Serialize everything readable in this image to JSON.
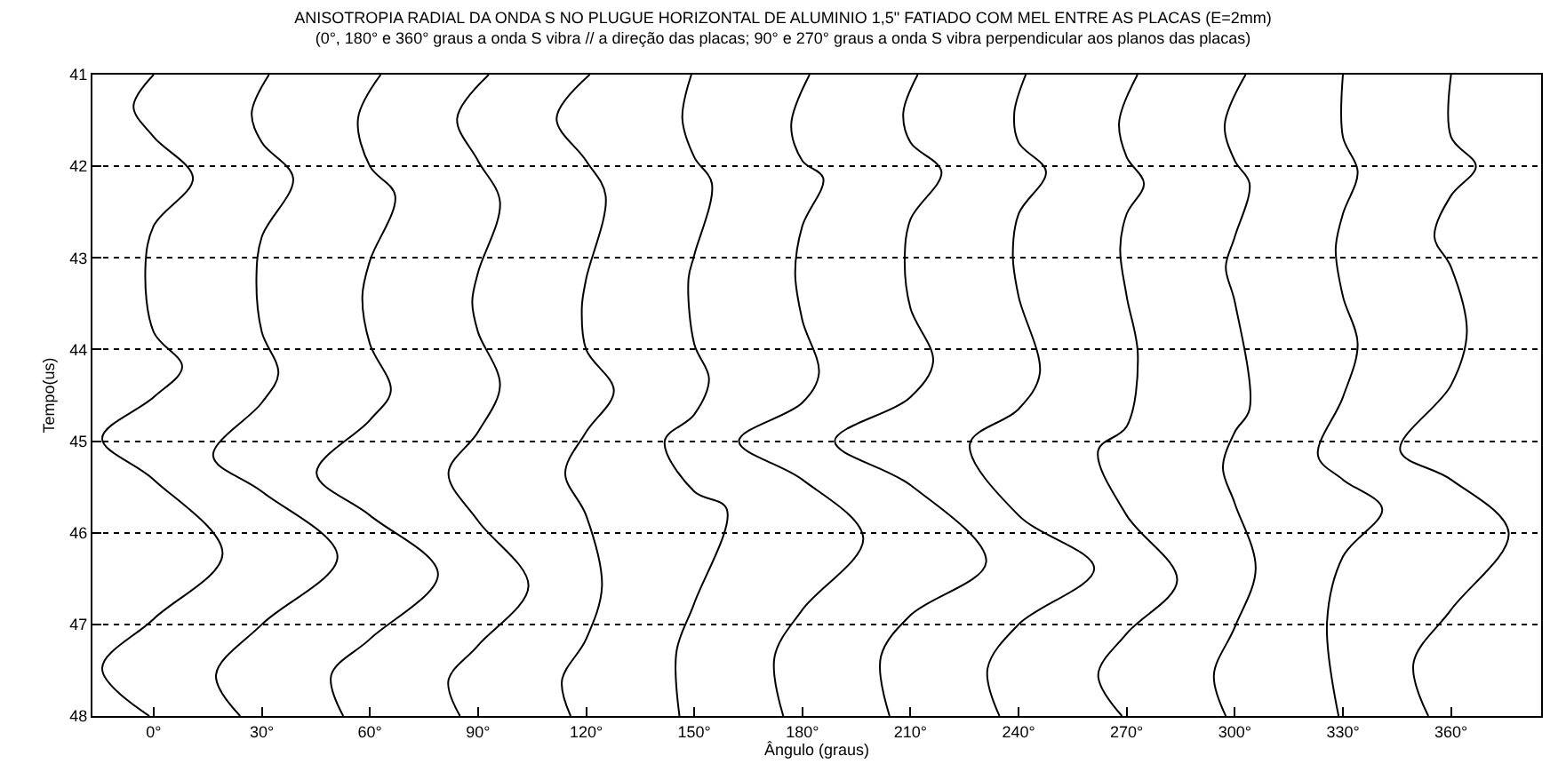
{
  "chart_data": {
    "type": "line",
    "title": "ANISOTROPIA RADIAL DA ONDA S NO PLUGUE HORIZONTAL DE ALUMINIO 1,5\" FATIADO COM MEL ENTRE AS PLACAS (E=2mm)",
    "subtitle": "(0°, 180° e 360° graus a onda S vibra // a direção das placas; 90° e 270° graus a onda S vibra perpendicular aos planos das placas)",
    "xlabel": "Ângulo (graus)",
    "ylabel": "Tempo(us)",
    "xlim": [
      -17,
      385
    ],
    "xticks": [
      {
        "value": 0,
        "label": "0°"
      },
      {
        "value": 30,
        "label": "30°"
      },
      {
        "value": 60,
        "label": "60°"
      },
      {
        "value": 90,
        "label": "90°"
      },
      {
        "value": 120,
        "label": "120°"
      },
      {
        "value": 150,
        "label": "150°"
      },
      {
        "value": 180,
        "label": "180°"
      },
      {
        "value": 210,
        "label": "210°"
      },
      {
        "value": 240,
        "label": "240°"
      },
      {
        "value": 270,
        "label": "270°"
      },
      {
        "value": 300,
        "label": "300°"
      },
      {
        "value": 330,
        "label": "330°"
      },
      {
        "value": 360,
        "label": "360°"
      }
    ],
    "ylim": [
      48,
      41
    ],
    "yticks": [
      41,
      42,
      43,
      44,
      45,
      46,
      47,
      48
    ],
    "grid": "y",
    "marker": "none",
    "line_style": "solid",
    "series": [
      {
        "color": "#000000",
        "x": [
          0,
          -5.6,
          0,
          10.9,
          0,
          -2.3,
          0,
          7.9,
          0,
          -14.3,
          0,
          19.1,
          0,
          -14.3,
          -1.2
        ],
        "values": [
          41,
          41.35,
          41.68,
          42.13,
          42.65,
          43.1,
          43.81,
          44.19,
          44.52,
          44.97,
          45.42,
          46.23,
          46.94,
          47.48,
          48
        ]
      },
      {
        "color": "#000000",
        "x": [
          32,
          27.2,
          30,
          38.7,
          30,
          28.5,
          30,
          34.6,
          30,
          16.5,
          30,
          51,
          30,
          17.3,
          24
        ],
        "values": [
          41,
          41.42,
          41.74,
          42.13,
          42.77,
          43.23,
          43.81,
          44.26,
          44.58,
          45.16,
          45.55,
          46.26,
          47,
          47.55,
          48
        ]
      },
      {
        "color": "#000000",
        "x": [
          63,
          56.7,
          60,
          67,
          60,
          57.9,
          60,
          65.8,
          60,
          45.2,
          60,
          78.9,
          60,
          49.3,
          52.6
        ],
        "values": [
          41,
          41.48,
          42,
          42.32,
          43.03,
          43.42,
          43.94,
          44.45,
          44.77,
          45.35,
          45.81,
          46.45,
          47.16,
          47.55,
          48
        ]
      },
      {
        "color": "#000000",
        "x": [
          93,
          84.2,
          90,
          96.1,
          90,
          88.4,
          90,
          96.1,
          90,
          81.8,
          90,
          104,
          90,
          81.8,
          85
        ],
        "values": [
          41,
          41.48,
          41.94,
          42.39,
          43.16,
          43.48,
          43.81,
          44.39,
          44.9,
          45.35,
          45.87,
          46.58,
          47.23,
          47.61,
          48
        ]
      },
      {
        "color": "#000000",
        "x": [
          121,
          111.8,
          120,
          125.4,
          120,
          118.8,
          120,
          127.7,
          120,
          114.2,
          120,
          124.4,
          120,
          113.3,
          115.7
        ],
        "values": [
          41,
          41.48,
          41.94,
          42.32,
          43.23,
          43.55,
          44,
          44.45,
          44.9,
          45.35,
          45.81,
          46.58,
          47.16,
          47.61,
          48
        ]
      },
      {
        "color": "#000000",
        "x": [
          149.2,
          146.7,
          150,
          154.9,
          150,
          148.4,
          150,
          154.1,
          150,
          141.8,
          150,
          159,
          150,
          145.1,
          145.9
        ],
        "values": [
          41,
          41.48,
          41.9,
          42.19,
          42.97,
          43.23,
          43.94,
          44.32,
          44.71,
          45,
          45.55,
          45.74,
          46.77,
          47.29,
          48
        ]
      },
      {
        "color": "#000000",
        "x": [
          182,
          176.9,
          180,
          185.8,
          180,
          178,
          180,
          184.6,
          180,
          162.4,
          180,
          196.9,
          180,
          172.3,
          174.7
        ],
        "values": [
          41,
          41.55,
          41.94,
          42.13,
          42.65,
          43.16,
          43.68,
          44.26,
          44.58,
          45,
          45.42,
          46.06,
          46.84,
          47.35,
          48
        ]
      },
      {
        "color": "#000000",
        "x": [
          212,
          208,
          210,
          218.6,
          210,
          208.4,
          210,
          216.3,
          210,
          189,
          210,
          231,
          210,
          201.8,
          204.2
        ],
        "values": [
          41,
          41.42,
          41.74,
          42.06,
          42.58,
          43.03,
          43.55,
          44.13,
          44.52,
          45,
          45.48,
          46.32,
          46.9,
          47.35,
          48
        ]
      },
      {
        "color": "#000000",
        "x": [
          242,
          238.8,
          240,
          247.6,
          240,
          238.4,
          240,
          245.9,
          240,
          226.5,
          240,
          261,
          240,
          231.4,
          234.7
        ],
        "values": [
          41,
          41.42,
          41.74,
          42.06,
          42.52,
          42.97,
          43.42,
          44.26,
          44.65,
          45.03,
          45.81,
          46.39,
          47,
          47.48,
          48
        ]
      },
      {
        "color": "#000000",
        "x": [
          273,
          267.9,
          270,
          274.8,
          270,
          268.2,
          270,
          273.1,
          270,
          262.1,
          270,
          284,
          270,
          262.1,
          268.7
        ],
        "values": [
          41,
          41.52,
          41.9,
          42.19,
          42.52,
          42.9,
          43.42,
          44.06,
          44.84,
          45.1,
          45.81,
          46.52,
          47.1,
          47.55,
          48
        ]
      },
      {
        "color": "#000000",
        "x": [
          303,
          297.2,
          300,
          304.1,
          300,
          297.5,
          300,
          304.1,
          300,
          296.7,
          300,
          305.8,
          300,
          294.2,
          297.5
        ],
        "values": [
          41,
          41.55,
          41.94,
          42.19,
          42.77,
          43.1,
          43.48,
          44.65,
          44.9,
          45.29,
          45.68,
          46.39,
          47.03,
          47.55,
          48
        ]
      },
      {
        "color": "#000000",
        "x": [
          330,
          330,
          334.1,
          330,
          328,
          330,
          334.1,
          330,
          323.1,
          330,
          340.9,
          330,
          325.6,
          328.8
        ],
        "values": [
          41,
          41.68,
          42.06,
          42.52,
          42.9,
          43.42,
          43.94,
          44.52,
          45.16,
          45.42,
          45.74,
          46.26,
          46.97,
          48
        ]
      },
      {
        "color": "#000000",
        "x": [
          360,
          360,
          366.9,
          360,
          355.4,
          360,
          364.4,
          360,
          345.9,
          360,
          376,
          360,
          349.6,
          353.7
        ],
        "values": [
          41,
          41.68,
          42,
          42.32,
          42.77,
          43.1,
          43.81,
          44.39,
          45.1,
          45.42,
          46,
          46.84,
          47.42,
          48
        ]
      }
    ]
  }
}
